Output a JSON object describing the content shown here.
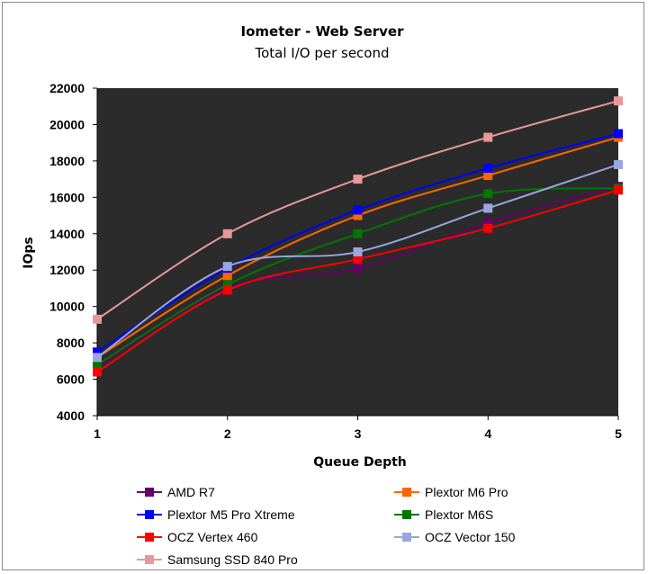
{
  "chart_data": {
    "type": "line",
    "title": "Iometer - Web Server",
    "subtitle": "Total I/O per second",
    "xlabel": "Queue Depth",
    "ylabel": "IOps",
    "x": [
      1,
      2,
      3,
      4,
      5
    ],
    "xlim": [
      1,
      5
    ],
    "ylim": [
      4000,
      22000
    ],
    "yticks": [
      4000,
      6000,
      8000,
      10000,
      12000,
      14000,
      16000,
      18000,
      20000,
      22000
    ],
    "plot_background": "#2b2b2b",
    "legend_position": "bottom",
    "series": [
      {
        "name": "AMD R7",
        "color": "#660066",
        "values": [
          6700,
          11000,
          12100,
          14600,
          16600
        ]
      },
      {
        "name": "Plextor M6 Pro",
        "color": "#ff6600",
        "values": [
          7200,
          11700,
          15000,
          17200,
          19300
        ]
      },
      {
        "name": "Plextor M5 Pro Xtreme",
        "color": "#0000ff",
        "values": [
          7500,
          12100,
          15300,
          17600,
          19500
        ]
      },
      {
        "name": "Plextor M6S",
        "color": "#007700",
        "values": [
          6800,
          11200,
          14000,
          16200,
          16500
        ]
      },
      {
        "name": "OCZ Vertex 460",
        "color": "#ff0000",
        "values": [
          6400,
          10900,
          12600,
          14300,
          16400
        ]
      },
      {
        "name": "OCZ Vector 150",
        "color": "#99a6e0",
        "values": [
          7200,
          12200,
          13000,
          15400,
          17800
        ]
      },
      {
        "name": "Samsung SSD 840 Pro",
        "color": "#e99898",
        "values": [
          9300,
          14000,
          17000,
          19300,
          21300
        ]
      }
    ]
  }
}
